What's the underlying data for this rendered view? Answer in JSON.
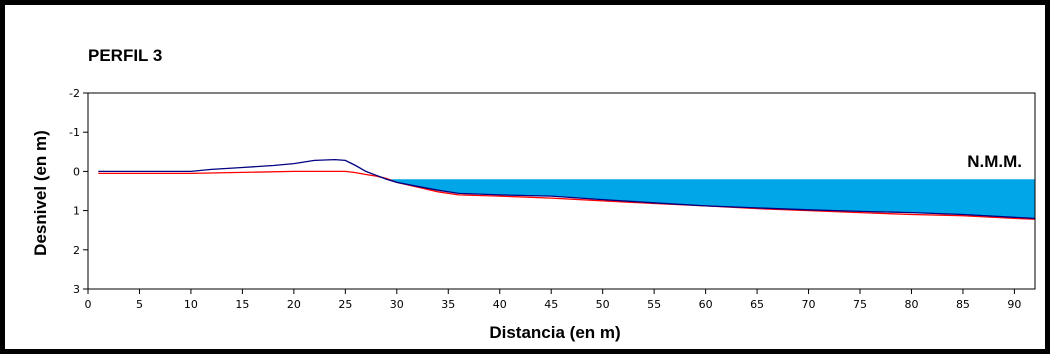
{
  "chart_data": {
    "type": "line",
    "title": "PERFIL 3",
    "xlabel": "Distancia (en m)",
    "ylabel": "Desnivel (en m)",
    "xlim": [
      0,
      92
    ],
    "ylim": [
      -2,
      3
    ],
    "y_inverted": true,
    "x_ticks": [
      0,
      5,
      10,
      15,
      20,
      25,
      30,
      35,
      40,
      45,
      50,
      55,
      60,
      65,
      70,
      75,
      80,
      85,
      90
    ],
    "x_tick_labels": [
      "0",
      "5",
      "10",
      "15",
      "20",
      "25",
      "30",
      "35",
      "40",
      "45",
      "50",
      "55",
      "60",
      "65",
      "70",
      "75",
      "80",
      "85",
      "90"
    ],
    "y_ticks": [
      -2,
      -1,
      0,
      1,
      2,
      3
    ],
    "y_tick_labels": [
      "-2",
      "-1",
      "0",
      "1",
      "2",
      "3"
    ],
    "grid": false,
    "annotation": "N.M.M.",
    "water_level": 0.2,
    "series": [
      {
        "color": "#000080",
        "x": [
          1,
          5,
          10,
          12,
          15,
          18,
          20,
          22,
          24,
          25,
          26,
          27,
          28,
          29,
          30,
          32,
          34,
          36,
          40,
          45,
          50,
          55,
          60,
          65,
          70,
          75,
          80,
          85,
          90,
          92
        ],
        "y": [
          0.0,
          0.0,
          0.0,
          -0.05,
          -0.1,
          -0.15,
          -0.2,
          -0.28,
          -0.3,
          -0.28,
          -0.15,
          0.0,
          0.1,
          0.2,
          0.28,
          0.38,
          0.48,
          0.56,
          0.6,
          0.63,
          0.72,
          0.8,
          0.88,
          0.93,
          0.98,
          1.02,
          1.05,
          1.1,
          1.17,
          1.2
        ]
      },
      {
        "color": "#ff0000",
        "x": [
          1,
          10,
          20,
          25,
          26,
          27,
          28,
          29,
          30,
          32,
          34,
          36,
          40,
          45,
          50,
          55,
          60,
          65,
          70,
          75,
          80,
          85,
          90,
          92
        ],
        "y": [
          0.05,
          0.05,
          0.0,
          0.0,
          0.03,
          0.08,
          0.12,
          0.18,
          0.28,
          0.4,
          0.52,
          0.6,
          0.63,
          0.68,
          0.75,
          0.82,
          0.88,
          0.95,
          1.0,
          1.05,
          1.1,
          1.13,
          1.2,
          1.22
        ]
      }
    ],
    "colors": {
      "water": "#00a6e8",
      "axis": "#000000",
      "frame": "#000000"
    }
  }
}
